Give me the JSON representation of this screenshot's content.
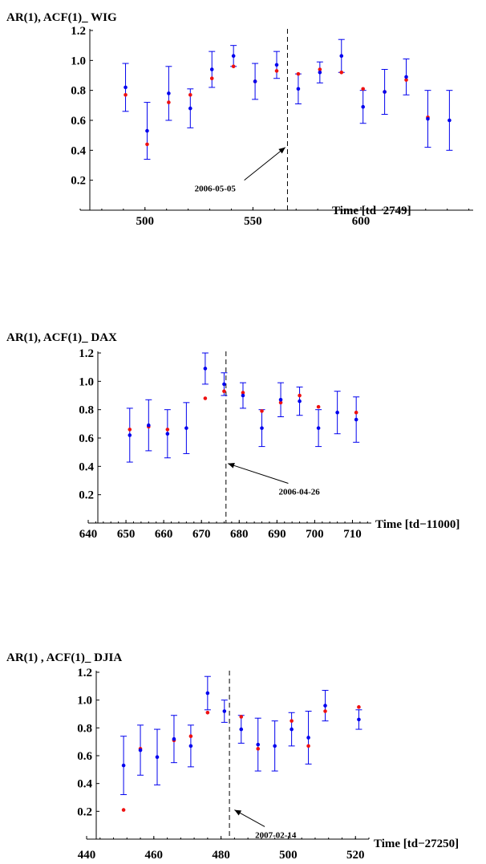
{
  "chart_data": [
    {
      "type": "scatter",
      "title": "AR(1),  ACF(1)_ WIG",
      "xlabel": "Time [td−2749]",
      "xlim": [
        470,
        652
      ],
      "ylim": [
        0,
        1.2
      ],
      "xticks": [
        500,
        550,
        600
      ],
      "yticks": [
        0.2,
        0.4,
        0.6,
        0.8,
        1.0,
        1.2
      ],
      "xtick_labels": [
        "500",
        "550",
        "600"
      ],
      "ytick_labels": [
        "0.2",
        "0.4",
        "0.6",
        "0.8",
        "1.0",
        "1.2"
      ],
      "colors": {
        "ar1": "#0000ee",
        "acf1": "#ee1111",
        "axes": "#000000",
        "marker_line": "#000000"
      },
      "series": [
        {
          "x": [
            491,
            501,
            511,
            521,
            531,
            541,
            551,
            561,
            571,
            581,
            591,
            601,
            611,
            621,
            631,
            641
          ],
          "y": [
            0.82,
            0.53,
            0.78,
            0.68,
            0.94,
            1.03,
            0.86,
            0.97,
            0.81,
            0.92,
            1.03,
            0.69,
            0.79,
            0.89,
            0.61,
            0.6
          ],
          "err": [
            0.16,
            0.19,
            0.18,
            0.13,
            0.12,
            0.07,
            0.12,
            0.09,
            0.1,
            0.07,
            0.11,
            0.11,
            0.15,
            0.12,
            0.19,
            0.2
          ]
        },
        {
          "x": [
            491,
            501,
            511,
            521,
            531,
            541,
            551,
            561,
            571,
            581,
            591,
            601,
            611,
            621,
            631
          ],
          "y": [
            0.77,
            0.44,
            0.72,
            0.77,
            0.88,
            0.96,
            0.86,
            0.93,
            0.91,
            0.94,
            0.92,
            0.81,
            0.79,
            0.87,
            0.62
          ]
        }
      ],
      "marker_line_x": 566,
      "annotation": {
        "text": "2006-05-05",
        "target": [
          565,
          0.42
        ],
        "tail": [
          546,
          0.2
        ]
      }
    },
    {
      "type": "scatter",
      "title": "AR(1),  ACF(1)_ DAX",
      "xlabel": "Time [td−11000]",
      "xlim": [
        640,
        715
      ],
      "ylim": [
        0,
        1.2
      ],
      "xticks": [
        640,
        650,
        660,
        670,
        680,
        690,
        700,
        710
      ],
      "yticks": [
        0.2,
        0.4,
        0.6,
        0.8,
        1.0,
        1.2
      ],
      "xtick_labels": [
        "640",
        "650",
        "660",
        "670",
        "680",
        "690",
        "700",
        "710"
      ],
      "ytick_labels": [
        "0.2",
        "0.4",
        "0.6",
        "0.8",
        "1.0",
        "1.2"
      ],
      "colors": {
        "ar1": "#0000ee",
        "acf1": "#ee1111",
        "axes": "#000000",
        "marker_line": "#000000"
      },
      "series": [
        {
          "x": [
            651,
            656,
            661,
            666,
            671,
            676,
            681,
            686,
            691,
            696,
            701,
            706,
            711
          ],
          "y": [
            0.62,
            0.69,
            0.63,
            0.67,
            1.09,
            0.98,
            0.9,
            0.67,
            0.87,
            0.86,
            0.67,
            0.78,
            0.73
          ],
          "err": [
            0.19,
            0.18,
            0.17,
            0.18,
            0.11,
            0.08,
            0.09,
            0.13,
            0.12,
            0.1,
            0.13,
            0.15,
            0.16
          ]
        },
        {
          "x": [
            651,
            656,
            661,
            671,
            676,
            681,
            686,
            691,
            696,
            701,
            711
          ],
          "y": [
            0.66,
            0.68,
            0.66,
            0.88,
            0.93,
            0.92,
            0.79,
            0.85,
            0.9,
            0.82,
            0.78
          ]
        }
      ],
      "marker_line_x": 676.5,
      "annotation": {
        "text": "2006-04-26",
        "target": [
          677,
          0.42
        ],
        "tail": [
          693,
          0.28
        ]
      }
    },
    {
      "type": "scatter",
      "title": "AR(1) ,  ACF(1)_ DJIA",
      "xlabel": "Time [td−27250]",
      "xlim": [
        440,
        524
      ],
      "ylim": [
        0,
        1.2
      ],
      "xticks": [
        440,
        460,
        480,
        500,
        520
      ],
      "yticks": [
        0.2,
        0.4,
        0.6,
        0.8,
        1.0,
        1.2
      ],
      "xtick_labels": [
        "440",
        "460",
        "480",
        "500",
        "520"
      ],
      "ytick_labels": [
        "0.2",
        "0.4",
        "0.6",
        "0.8",
        "1.0",
        "1.2"
      ],
      "colors": {
        "ar1": "#0000ee",
        "acf1": "#ee1111",
        "axes": "#000000",
        "marker_line": "#000000"
      },
      "series": [
        {
          "x": [
            451,
            456,
            461,
            466,
            471,
            476,
            481,
            486,
            491,
            496,
            501,
            506,
            511,
            521
          ],
          "y": [
            0.53,
            0.64,
            0.59,
            0.72,
            0.67,
            1.05,
            0.92,
            0.79,
            0.68,
            0.67,
            0.79,
            0.73,
            0.96,
            0.86
          ],
          "err": [
            0.21,
            0.18,
            0.2,
            0.17,
            0.15,
            0.12,
            0.08,
            0.1,
            0.19,
            0.18,
            0.12,
            0.19,
            0.11,
            0.07
          ]
        },
        {
          "x": [
            451,
            456,
            466,
            471,
            476,
            486,
            491,
            501,
            506,
            511,
            521
          ],
          "y": [
            0.21,
            0.65,
            0.71,
            0.74,
            0.91,
            0.88,
            0.65,
            0.85,
            0.67,
            0.92,
            0.95
          ]
        }
      ],
      "marker_line_x": 482.5,
      "annotation": {
        "text": "2007-02-14",
        "target": [
          484,
          0.21
        ],
        "tail": [
          493,
          0.09
        ]
      }
    }
  ]
}
